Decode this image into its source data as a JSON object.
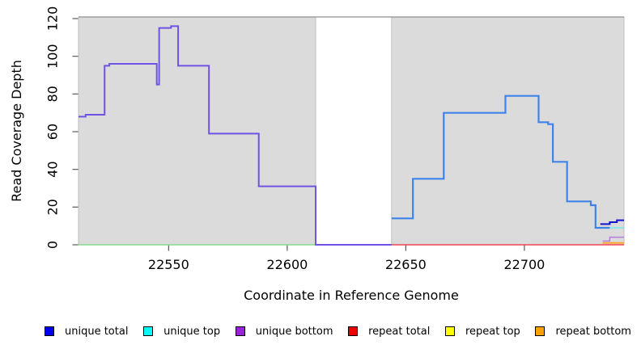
{
  "axes": {
    "xlabel": "Coordinate in Reference Genome",
    "ylabel": "Read Coverage Depth"
  },
  "chart_data": {
    "type": "line",
    "title": "",
    "xlabel": "Coordinate in Reference Genome",
    "ylabel": "Read Coverage Depth",
    "xlim": [
      22512,
      22742
    ],
    "ylim": [
      0,
      120
    ],
    "xticks": [
      22550,
      22600,
      22650,
      22700
    ],
    "yticks": [
      0,
      20,
      40,
      60,
      80,
      100,
      120
    ],
    "grid": false,
    "legend_position": "bottom",
    "plot_bg": "#dbdbdb",
    "plot_bg_border": "#bfbfbf",
    "top_border_color": "#8f8f8f",
    "tick_color": "#5a5a5a",
    "masked_region": {
      "x0": 22612,
      "x1": 22644,
      "fill": "#ffffff"
    },
    "series": [
      {
        "name": "unique top + repeat top baseline (left block, renders green)",
        "color": "#86d98c",
        "width": 1.5,
        "points": [
          [
            22512,
            0
          ]
        ],
        "end": 22612
      },
      {
        "name": "repeat total (right block baseline)",
        "color": "#ee4455",
        "width": 1.5,
        "points": [
          [
            22644,
            0
          ]
        ],
        "end": 22742
      },
      {
        "name": "unique total (right block)",
        "color": "#3f83ea",
        "width": 2.2,
        "points": [
          [
            22644,
            14
          ],
          [
            22653,
            35
          ],
          [
            22666,
            70
          ],
          [
            22692,
            79
          ],
          [
            22706,
            65
          ],
          [
            22710,
            64
          ],
          [
            22712,
            44
          ],
          [
            22718,
            23
          ],
          [
            22728,
            21
          ],
          [
            22730,
            9
          ]
        ],
        "end": 22736
      },
      {
        "name": "unique top (right end)",
        "color": "#76eded",
        "width": 1.5,
        "points": [
          [
            22736,
            9
          ]
        ],
        "end": 22742
      },
      {
        "name": "unique total (right end)",
        "color": "#1414cc",
        "width": 2,
        "points": [
          [
            22732,
            11
          ],
          [
            22736,
            12
          ],
          [
            22739,
            13
          ]
        ],
        "end": 22742
      },
      {
        "name": "unique bottom (right end)",
        "color": "#b77fdc",
        "width": 1.5,
        "points": [
          [
            22733,
            2
          ],
          [
            22736,
            4
          ]
        ],
        "end": 22742
      },
      {
        "name": "repeat bottom (right end)",
        "color": "#ffa526",
        "width": 1.8,
        "points": [
          [
            22733,
            1
          ]
        ],
        "end": 22742
      },
      {
        "name": "unique bottom (left block)",
        "color": "#6f53e4",
        "width": 2,
        "points": [
          [
            22512,
            68
          ],
          [
            22515,
            69
          ],
          [
            22523,
            95
          ],
          [
            22525,
            96
          ],
          [
            22545,
            85
          ],
          [
            22546,
            115
          ],
          [
            22551,
            116
          ],
          [
            22554,
            95
          ],
          [
            22567,
            59
          ],
          [
            22588,
            31
          ],
          [
            22612,
            0
          ]
        ],
        "end": 22644
      }
    ]
  },
  "legend": {
    "items": [
      {
        "label": "unique total",
        "color": "#0000ee"
      },
      {
        "label": "unique top",
        "color": "#00ffff"
      },
      {
        "label": "unique bottom",
        "color": "#9a22d8"
      },
      {
        "label": "repeat total",
        "color": "#ee0000"
      },
      {
        "label": "repeat top",
        "color": "#ffff00"
      },
      {
        "label": "repeat bottom",
        "color": "#ffa100"
      }
    ]
  }
}
